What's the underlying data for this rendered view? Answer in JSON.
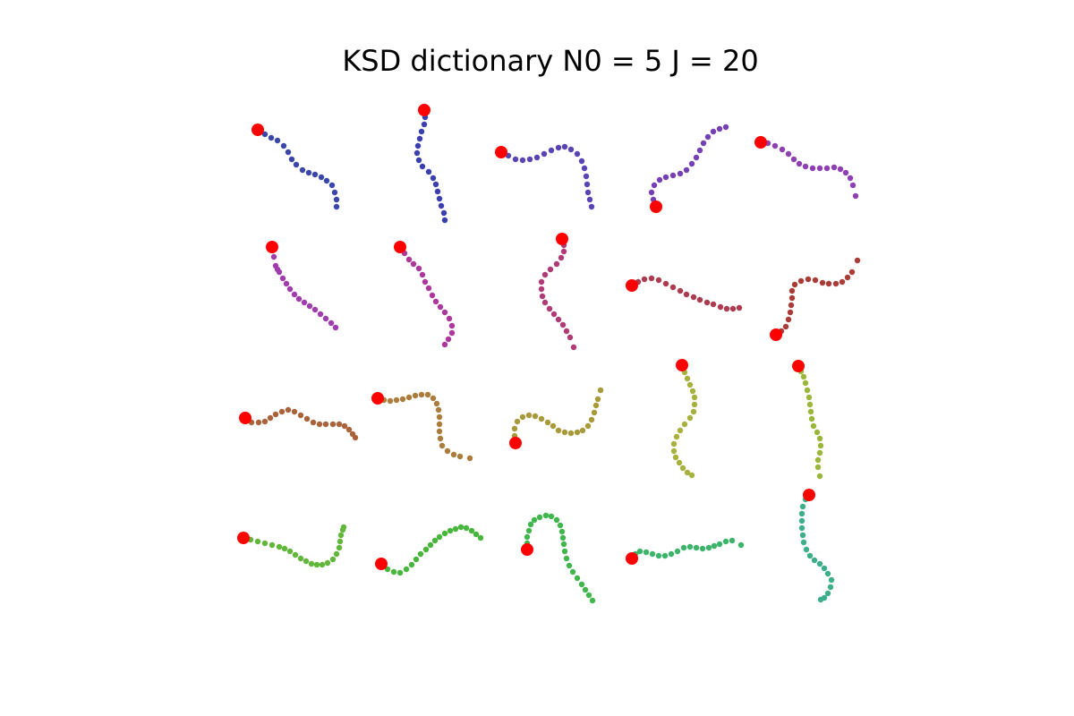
{
  "chart_data": {
    "type": "scatter",
    "title": "KSD dictionary  N0 = 5  J = 20",
    "xlabel": "",
    "ylabel": "",
    "axes": "off",
    "grid": false,
    "legend": "none",
    "marker_color": "#ff0000",
    "colors": [
      "#3b47a8",
      "#3b3fae",
      "#5a44b4",
      "#7440b4",
      "#8e3fb2",
      "#a13cae",
      "#ac389c",
      "#b03a76",
      "#ad3b50",
      "#a93c37",
      "#a9623a",
      "#ab7d3c",
      "#a89a3b",
      "#a7b13d",
      "#9ab73b",
      "#62b63c",
      "#48b53c",
      "#41b64c",
      "#3cb56a",
      "#3caf8a"
    ],
    "curves": [
      [
        [
          288,
          145
        ],
        [
          296,
          150
        ],
        [
          303,
          154
        ],
        [
          310,
          157
        ],
        [
          317,
          163
        ],
        [
          322,
          170
        ],
        [
          326,
          178
        ],
        [
          331,
          184
        ],
        [
          338,
          190
        ],
        [
          345,
          193
        ],
        [
          352,
          195
        ],
        [
          359,
          198
        ],
        [
          365,
          202
        ],
        [
          371,
          207
        ],
        [
          374,
          215
        ],
        [
          376,
          223
        ],
        [
          376,
          231
        ]
      ],
      [
        [
          474,
          123
        ],
        [
          475,
          131
        ],
        [
          474,
          139
        ],
        [
          471,
          147
        ],
        [
          469,
          155
        ],
        [
          467,
          163
        ],
        [
          466,
          171
        ],
        [
          468,
          179
        ],
        [
          472,
          186
        ],
        [
          479,
          192
        ],
        [
          484,
          199
        ],
        [
          487,
          206
        ],
        [
          489,
          214
        ],
        [
          491,
          222
        ],
        [
          493,
          230
        ],
        [
          496,
          238
        ],
        [
          497,
          246
        ]
      ],
      [
        [
          560,
          170
        ],
        [
          568,
          174
        ],
        [
          576,
          178
        ],
        [
          584,
          179
        ],
        [
          592,
          178
        ],
        [
          600,
          176
        ],
        [
          608,
          172
        ],
        [
          616,
          168
        ],
        [
          624,
          165
        ],
        [
          631,
          164
        ],
        [
          638,
          167
        ],
        [
          645,
          172
        ],
        [
          650,
          180
        ],
        [
          653,
          188
        ],
        [
          655,
          197
        ],
        [
          656,
          206
        ],
        [
          657,
          215
        ],
        [
          659,
          223
        ],
        [
          661,
          231
        ]
      ],
      [
        [
          733,
          231
        ],
        [
          730,
          223
        ],
        [
          728,
          215
        ],
        [
          731,
          207
        ],
        [
          737,
          201
        ],
        [
          744,
          198
        ],
        [
          752,
          196
        ],
        [
          760,
          194
        ],
        [
          767,
          190
        ],
        [
          773,
          183
        ],
        [
          778,
          176
        ],
        [
          782,
          168
        ],
        [
          786,
          160
        ],
        [
          791,
          153
        ],
        [
          797,
          147
        ],
        [
          804,
          144
        ],
        [
          811,
          142
        ]
      ],
      [
        [
          850,
          159
        ],
        [
          858,
          160
        ],
        [
          866,
          163
        ],
        [
          874,
          167
        ],
        [
          881,
          172
        ],
        [
          887,
          178
        ],
        [
          893,
          183
        ],
        [
          900,
          186
        ],
        [
          908,
          188
        ],
        [
          916,
          188
        ],
        [
          924,
          188
        ],
        [
          932,
          187
        ],
        [
          939,
          189
        ],
        [
          945,
          193
        ],
        [
          950,
          199
        ],
        [
          953,
          207
        ],
        [
          956,
          219
        ]
      ],
      [
        [
          304,
          276
        ],
        [
          306,
          287
        ],
        [
          308,
          297
        ],
        [
          310,
          301
        ],
        [
          312,
          304
        ],
        [
          316,
          311
        ],
        [
          320,
          317
        ],
        [
          324,
          323
        ],
        [
          329,
          329
        ],
        [
          334,
          334
        ],
        [
          340,
          338
        ],
        [
          346,
          342
        ],
        [
          352,
          346
        ],
        [
          358,
          351
        ],
        [
          364,
          356
        ],
        [
          370,
          361
        ],
        [
          375,
          366
        ]
      ],
      [
        [
          447,
          276
        ],
        [
          452,
          283
        ],
        [
          457,
          290
        ],
        [
          462,
          295
        ],
        [
          468,
          300
        ],
        [
          472,
          307
        ],
        [
          475,
          315
        ],
        [
          479,
          322
        ],
        [
          483,
          330
        ],
        [
          487,
          337
        ],
        [
          492,
          343
        ],
        [
          497,
          349
        ],
        [
          502,
          356
        ],
        [
          505,
          364
        ],
        [
          505,
          372
        ],
        [
          501,
          379
        ],
        [
          497,
          385
        ]
      ],
      [
        [
          628,
          267
        ],
        [
          630,
          274
        ],
        [
          630,
          281
        ],
        [
          627,
          288
        ],
        [
          622,
          295
        ],
        [
          615,
          301
        ],
        [
          609,
          307
        ],
        [
          605,
          315
        ],
        [
          605,
          323
        ],
        [
          606,
          331
        ],
        [
          609,
          338
        ],
        [
          614,
          345
        ],
        [
          619,
          351
        ],
        [
          624,
          357
        ],
        [
          629,
          363
        ],
        [
          633,
          370
        ],
        [
          637,
          377
        ],
        [
          641,
          388
        ]
      ],
      [
        [
          706,
          319
        ],
        [
          713,
          315
        ],
        [
          720,
          312
        ],
        [
          728,
          311
        ],
        [
          736,
          313
        ],
        [
          744,
          317
        ],
        [
          752,
          321
        ],
        [
          760,
          325
        ],
        [
          767,
          329
        ],
        [
          775,
          332
        ],
        [
          782,
          335
        ],
        [
          790,
          338
        ],
        [
          797,
          340
        ],
        [
          805,
          343
        ],
        [
          812,
          345
        ],
        [
          819,
          345
        ],
        [
          826,
          344
        ]
      ],
      [
        [
          867,
          374
        ],
        [
          873,
          370
        ],
        [
          878,
          365
        ],
        [
          881,
          357
        ],
        [
          883,
          349
        ],
        [
          884,
          341
        ],
        [
          885,
          333
        ],
        [
          885,
          325
        ],
        [
          888,
          318
        ],
        [
          895,
          314
        ],
        [
          903,
          312
        ],
        [
          911,
          313
        ],
        [
          919,
          316
        ],
        [
          926,
          317
        ],
        [
          934,
          317
        ],
        [
          941,
          315
        ],
        [
          947,
          310
        ],
        [
          952,
          304
        ],
        [
          958,
          291
        ]
      ],
      [
        [
          274,
          467
        ],
        [
          281,
          472
        ],
        [
          289,
          472
        ],
        [
          296,
          471
        ],
        [
          302,
          467
        ],
        [
          308,
          463
        ],
        [
          315,
          460
        ],
        [
          322,
          458
        ],
        [
          329,
          460
        ],
        [
          336,
          464
        ],
        [
          343,
          468
        ],
        [
          350,
          472
        ],
        [
          357,
          474
        ],
        [
          364,
          474
        ],
        [
          372,
          474
        ],
        [
          379,
          474
        ],
        [
          385,
          476
        ],
        [
          390,
          480
        ],
        [
          394,
          485
        ],
        [
          397,
          489
        ]
      ],
      [
        [
          422,
          445
        ],
        [
          429,
          447
        ],
        [
          436,
          448
        ],
        [
          443,
          447
        ],
        [
          450,
          446
        ],
        [
          457,
          444
        ],
        [
          464,
          442
        ],
        [
          471,
          441
        ],
        [
          478,
          441
        ],
        [
          484,
          445
        ],
        [
          488,
          451
        ],
        [
          490,
          458
        ],
        [
          491,
          466
        ],
        [
          491,
          474
        ],
        [
          491,
          482
        ],
        [
          492,
          490
        ],
        [
          494,
          498
        ],
        [
          500,
          504
        ],
        [
          507,
          508
        ],
        [
          514,
          510
        ],
        [
          525,
          512
        ]
      ],
      [
        [
          576,
          495
        ],
        [
          575,
          487
        ],
        [
          575,
          479
        ],
        [
          578,
          471
        ],
        [
          584,
          466
        ],
        [
          591,
          464
        ],
        [
          598,
          465
        ],
        [
          605,
          468
        ],
        [
          612,
          472
        ],
        [
          618,
          476
        ],
        [
          624,
          481
        ],
        [
          631,
          483
        ],
        [
          638,
          484
        ],
        [
          645,
          483
        ],
        [
          651,
          481
        ],
        [
          657,
          476
        ],
        [
          661,
          469
        ],
        [
          664,
          461
        ],
        [
          666,
          453
        ],
        [
          668,
          446
        ],
        [
          671,
          436
        ]
      ],
      [
        [
          762,
          408
        ],
        [
          765,
          416
        ],
        [
          768,
          423
        ],
        [
          771,
          430
        ],
        [
          774,
          437
        ],
        [
          776,
          444
        ],
        [
          776,
          452
        ],
        [
          775,
          460
        ],
        [
          771,
          467
        ],
        [
          765,
          474
        ],
        [
          760,
          481
        ],
        [
          756,
          488
        ],
        [
          753,
          496
        ],
        [
          753,
          504
        ],
        [
          755,
          511
        ],
        [
          759,
          517
        ],
        [
          763,
          523
        ],
        [
          768,
          528
        ],
        [
          773,
          531
        ]
      ],
      [
        [
          892,
          409
        ],
        [
          895,
          415
        ],
        [
          898,
          421
        ],
        [
          900,
          428
        ],
        [
          902,
          436
        ],
        [
          904,
          444
        ],
        [
          905,
          452
        ],
        [
          906,
          460
        ],
        [
          907,
          468
        ],
        [
          909,
          476
        ],
        [
          913,
          483
        ],
        [
          916,
          490
        ],
        [
          917,
          498
        ],
        [
          916,
          506
        ],
        [
          914,
          514
        ],
        [
          914,
          522
        ],
        [
          916,
          532
        ]
      ],
      [
        [
          272,
          601
        ],
        [
          280,
          603
        ],
        [
          288,
          605
        ],
        [
          296,
          607
        ],
        [
          304,
          609
        ],
        [
          312,
          611
        ],
        [
          318,
          613
        ],
        [
          324,
          616
        ],
        [
          330,
          620
        ],
        [
          336,
          624
        ],
        [
          342,
          627
        ],
        [
          348,
          630
        ],
        [
          354,
          631
        ],
        [
          360,
          631
        ],
        [
          366,
          629
        ],
        [
          372,
          625
        ],
        [
          376,
          619
        ],
        [
          379,
          612
        ],
        [
          380,
          605
        ],
        [
          381,
          598
        ],
        [
          383,
          592
        ],
        [
          384,
          589
        ]
      ],
      [
        [
          426,
          630
        ],
        [
          433,
          636
        ],
        [
          440,
          639
        ],
        [
          447,
          640
        ],
        [
          454,
          636
        ],
        [
          460,
          631
        ],
        [
          465,
          625
        ],
        [
          470,
          619
        ],
        [
          476,
          614
        ],
        [
          481,
          609
        ],
        [
          486,
          604
        ],
        [
          491,
          600
        ],
        [
          497,
          596
        ],
        [
          503,
          593
        ],
        [
          509,
          591
        ],
        [
          515,
          589
        ],
        [
          521,
          590
        ],
        [
          527,
          593
        ],
        [
          532,
          597
        ],
        [
          537,
          601
        ]
      ],
      [
        [
          589,
          614
        ],
        [
          589,
          607
        ],
        [
          589,
          600
        ],
        [
          591,
          593
        ],
        [
          593,
          586
        ],
        [
          597,
          581
        ],
        [
          603,
          578
        ],
        [
          610,
          576
        ],
        [
          616,
          577
        ],
        [
          622,
          581
        ],
        [
          626,
          587
        ],
        [
          628,
          594
        ],
        [
          629,
          601
        ],
        [
          630,
          608
        ],
        [
          631,
          616
        ],
        [
          633,
          624
        ],
        [
          636,
          632
        ],
        [
          640,
          639
        ],
        [
          645,
          646
        ],
        [
          650,
          653
        ],
        [
          654,
          659
        ],
        [
          658,
          665
        ],
        [
          662,
          671
        ]
      ],
      [
        [
          706,
          624
        ],
        [
          710,
          619
        ],
        [
          715,
          616
        ],
        [
          722,
          617
        ],
        [
          729,
          619
        ],
        [
          736,
          621
        ],
        [
          743,
          621
        ],
        [
          750,
          619
        ],
        [
          757,
          616
        ],
        [
          764,
          612
        ],
        [
          771,
          611
        ],
        [
          778,
          612
        ],
        [
          785,
          613
        ],
        [
          792,
          612
        ],
        [
          798,
          610
        ],
        [
          804,
          608
        ],
        [
          811,
          605
        ],
        [
          818,
          604
        ],
        [
          828,
          609
        ]
      ],
      [
        [
          904,
          553
        ],
        [
          900,
          558
        ],
        [
          897,
          566
        ],
        [
          896,
          574
        ],
        [
          896,
          582
        ],
        [
          896,
          590
        ],
        [
          897,
          598
        ],
        [
          898,
          606
        ],
        [
          901,
          614
        ],
        [
          905,
          621
        ],
        [
          910,
          626
        ],
        [
          916,
          630
        ],
        [
          921,
          635
        ],
        [
          925,
          641
        ],
        [
          929,
          648
        ],
        [
          928,
          656
        ],
        [
          925,
          663
        ],
        [
          921,
          668
        ],
        [
          917,
          670
        ]
      ]
    ]
  }
}
